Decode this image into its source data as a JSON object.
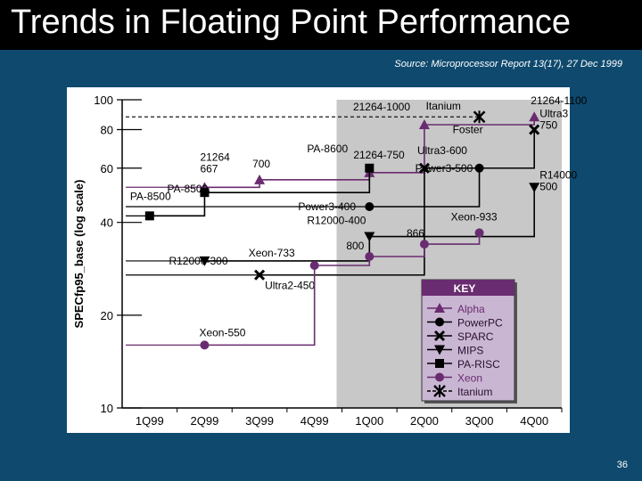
{
  "slide": {
    "title": "Trends in Floating Point Performance",
    "source": "Source: Microprocessor Report 13(17), 27 Dec 1999",
    "page_number": "36"
  },
  "colors": {
    "background": "#0f4a6e",
    "shade": "#c8c8c8",
    "xeon": "#6a2c70",
    "alpha": "#6a2c70",
    "other": "#000000",
    "key_bg": "#c9b6d3",
    "key_header": "#6a2c70"
  },
  "chart_data": {
    "type": "line",
    "ylabel": "SPECfp95_base (log scale)",
    "yscale": "log",
    "ylim": [
      10,
      100
    ],
    "yticks": [
      "10",
      "20",
      "40",
      "60",
      "80",
      "100"
    ],
    "categories": [
      "1Q99",
      "2Q99",
      "3Q99",
      "4Q99",
      "1Q00",
      "2Q00",
      "3Q00",
      "4Q00"
    ],
    "grid": false,
    "shaded_region_from": "1Q00",
    "series": [
      {
        "name": "Alpha",
        "marker": "triangle-up",
        "color": "#6a2c70",
        "points": [
          {
            "label": "21264\n667",
            "x": "2Q99",
            "y": 52
          },
          {
            "label": "700",
            "x": "3Q99",
            "y": 55
          },
          {
            "label": "21264-750",
            "x": "1Q00",
            "y": 58
          },
          {
            "label": "21264-1000",
            "x": "2Q00",
            "y": 83
          },
          {
            "label": "21264-1100",
            "x": "4Q00",
            "y": 88
          }
        ]
      },
      {
        "name": "PowerPC",
        "marker": "circle",
        "color": "#000000",
        "points": [
          {
            "label": "Power3-400",
            "x": "1Q00",
            "y": 45
          },
          {
            "label": "Power3-500",
            "x": "3Q00",
            "y": 60
          }
        ]
      },
      {
        "name": "SPARC",
        "marker": "x",
        "color": "#000000",
        "points": [
          {
            "label": "Ultra2-450",
            "x": "3Q99",
            "y": 27
          },
          {
            "label": "Ultra3-600",
            "x": "2Q00",
            "y": 60
          },
          {
            "label": "Ultra3\n750",
            "x": "4Q00",
            "y": 80
          }
        ]
      },
      {
        "name": "MIPS",
        "marker": "triangle-down",
        "color": "#000000",
        "points": [
          {
            "label": "R12000-300",
            "x": "2Q99",
            "y": 30
          },
          {
            "label": "R12000-400",
            "x": "1Q00",
            "y": 36
          },
          {
            "label": "R14000\n500",
            "x": "4Q00",
            "y": 52
          }
        ]
      },
      {
        "name": "PA-RISC",
        "marker": "square",
        "color": "#000000",
        "points": [
          {
            "label": "PA-8500",
            "x": "1Q99",
            "y": 42
          },
          {
            "label": "PA-8500",
            "x": "2Q99",
            "y": 50
          },
          {
            "label": "PA-8600",
            "x": "1Q00",
            "y": 60
          }
        ]
      },
      {
        "name": "Xeon",
        "marker": "circle",
        "color": "#6a2c70",
        "points": [
          {
            "label": "Xeon-550",
            "x": "2Q99",
            "y": 16
          },
          {
            "label": "Xeon-733",
            "x": "4Q99",
            "y": 29
          },
          {
            "label": "800",
            "x": "1Q00",
            "y": 31
          },
          {
            "label": "866",
            "x": "2Q00",
            "y": 34
          },
          {
            "label": "Xeon-933",
            "x": "3Q00",
            "y": 37
          }
        ]
      },
      {
        "name": "Itanium",
        "marker": "star",
        "color": "#000000",
        "points": [
          {
            "label": "Itanium",
            "x": "3Q00",
            "y": 88
          }
        ]
      }
    ],
    "extra_labels": [
      {
        "text": "Foster",
        "x": "3Q00",
        "y": 77
      }
    ],
    "legend": {
      "title": "KEY",
      "placement": "bottom-right",
      "entries": [
        "Alpha",
        "PowerPC",
        "SPARC",
        "MIPS",
        "PA-RISC",
        "Xeon",
        "Itanium"
      ]
    }
  }
}
